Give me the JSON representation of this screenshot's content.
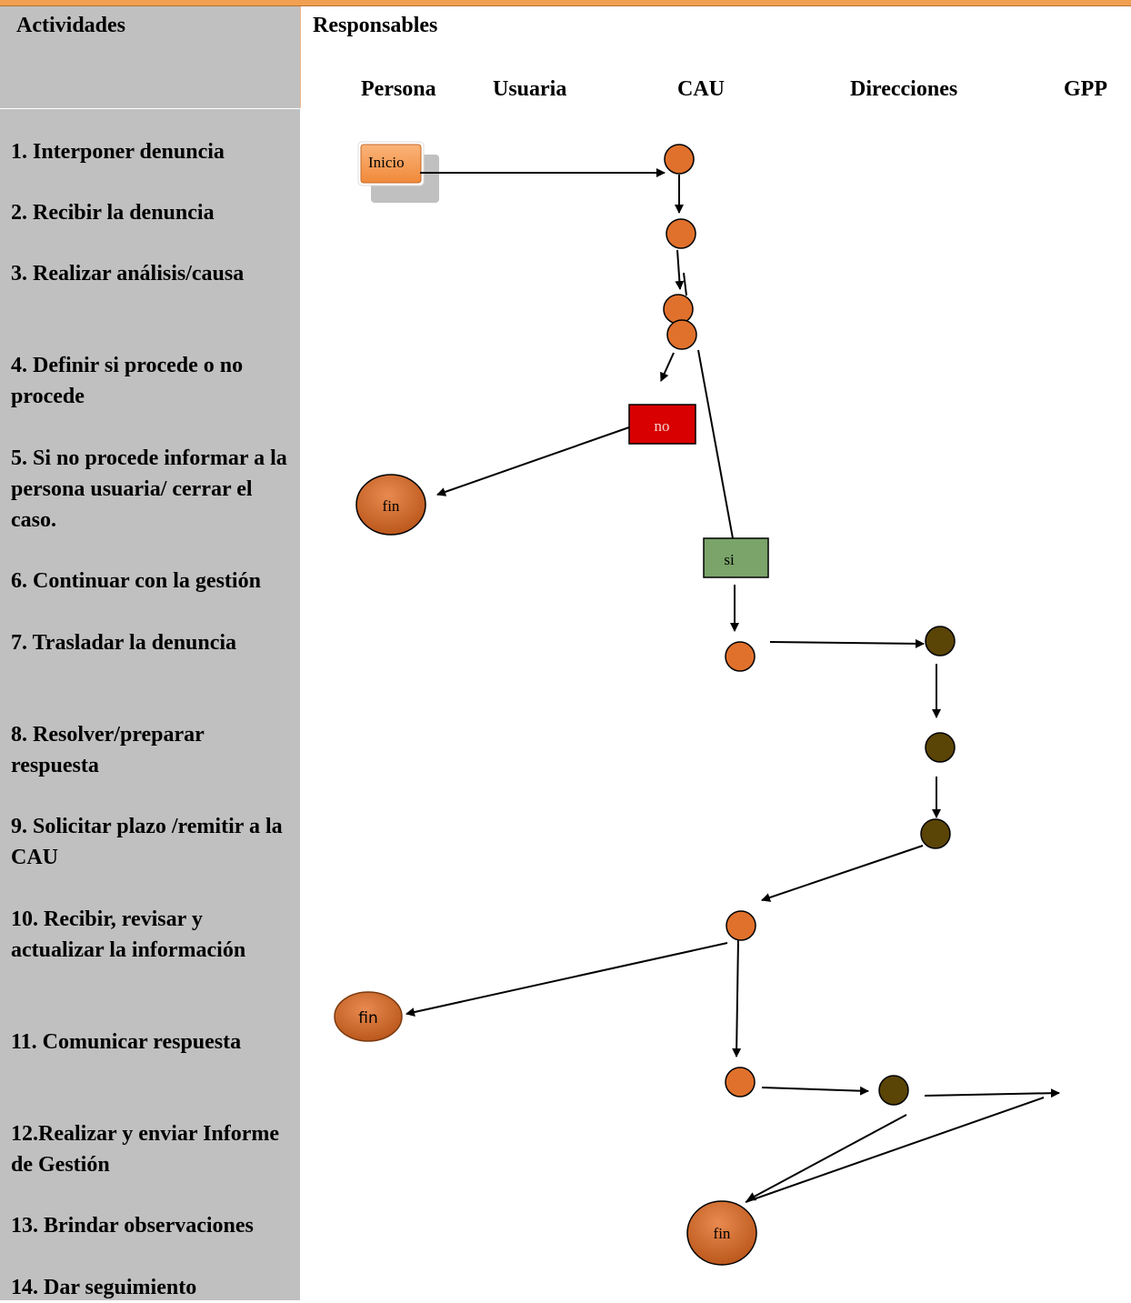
{
  "header": {
    "activities_label": "Actividades",
    "responsables_label": "Responsables",
    "lanes": [
      "Persona",
      "Usuaria",
      "CAU",
      "Direcciones",
      "GPP"
    ]
  },
  "activities": [
    "1.   Interponer denuncia",
    "2.    Recibir   la denuncia",
    "3. Realizar análisis/causa",
    "4. Definir si procede o no procede",
    "5. Si no procede informar a la persona usuaria/ cerrar el caso.",
    "6.    Continuar con la gestión",
    "7.    Trasladar la denuncia",
    "8.    Resolver/preparar respuesta",
    "9.  Solicitar plazo /remitir a la CAU",
    "10.  Recibir, revisar y actualizar la información",
    "11. Comunicar respuesta",
    "12.Realizar y enviar Informe de Gestión",
    "13. Brindar observaciones",
    "14. Dar seguimiento"
  ],
  "flow": {
    "start_label": "Inicio",
    "no_label": "no",
    "si_label": "si",
    "end_labels": [
      "fin",
      "fin",
      "fin"
    ]
  },
  "colors": {
    "sidebar_bg": "#c0c0c0",
    "top_bar": "#f0a050",
    "cau_node": "#e0712c",
    "direcciones_node": "#5a4406",
    "no_box": "#d80000",
    "si_box": "#7aa46a",
    "start_box": "#f79646",
    "end_node": "#cc6626"
  }
}
